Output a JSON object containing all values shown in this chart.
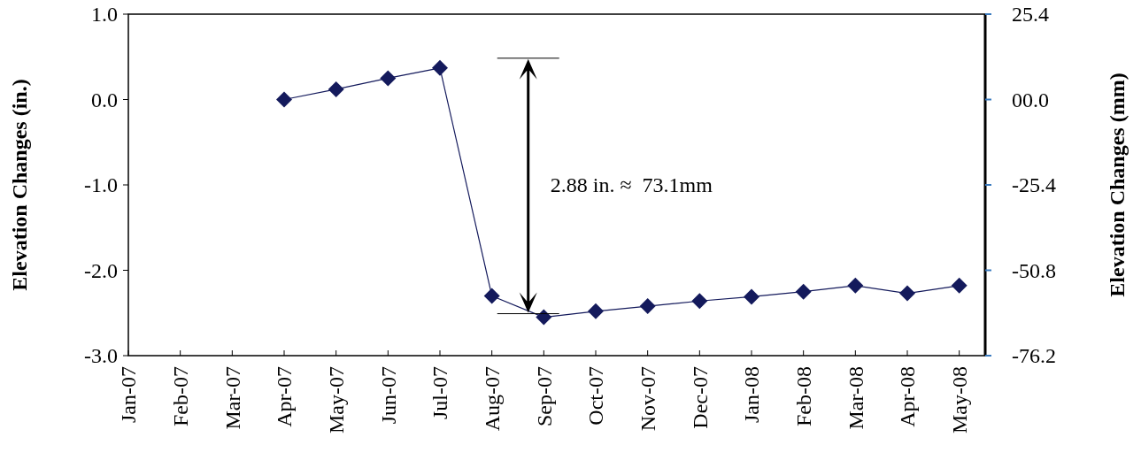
{
  "chart_data": {
    "type": "line",
    "ylabel": "Elevation Changes (in.)",
    "y2label": "Elevation Changes (mm)",
    "categories": [
      "Jan-07",
      "Feb-07",
      "Mar-07",
      "Apr-07",
      "May-07",
      "Jun-07",
      "Jul-07",
      "Aug-07",
      "Sep-07",
      "Oct-07",
      "Nov-07",
      "Dec-07",
      "Jan-08",
      "Feb-08",
      "Mar-08",
      "Apr-08",
      "May-08"
    ],
    "series": [
      {
        "color": "#141a5c",
        "values": [
          null,
          null,
          null,
          0.0,
          0.12,
          0.25,
          0.37,
          -2.3,
          -2.55,
          -2.48,
          -2.42,
          -2.36,
          -2.31,
          -2.25,
          -2.18,
          -2.27,
          -2.18
        ]
      }
    ],
    "ylim": [
      -3.0,
      1.0
    ],
    "yticks": [
      {
        "value": 1,
        "label": "1.0"
      },
      {
        "value": 0,
        "label": "0.0"
      },
      {
        "value": -1,
        "label": "-1.0"
      },
      {
        "value": -2,
        "label": "-2.0"
      },
      {
        "value": -3,
        "label": "-3.0"
      }
    ],
    "y2lim": [
      -76.2,
      25.4
    ],
    "y2ticks": [
      25.4,
      {
        "value": 0,
        "label": "00.0"
      },
      -25.4,
      -50.8,
      -76.2
    ],
    "marker": "diamond",
    "grid": false,
    "annotations": [
      "2.88 in. ≈  73.1mm"
    ]
  }
}
